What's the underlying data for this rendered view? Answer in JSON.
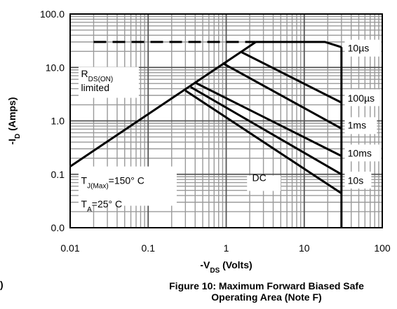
{
  "chart_data": {
    "type": "line",
    "title": "",
    "xlabel_main": "-V",
    "xlabel_sub": "DS",
    "xlabel_tail": " (Volts)",
    "ylabel_main": "-I",
    "ylabel_sub": "D",
    "ylabel_tail": " (Amps)",
    "x_scale": "log",
    "y_scale": "log",
    "xlim": [
      0.01,
      100
    ],
    "ylim": [
      0.01,
      100
    ],
    "x_ticks": [
      {
        "value": 0.01,
        "label": "0.01"
      },
      {
        "value": 0.1,
        "label": "0.1"
      },
      {
        "value": 1,
        "label": "1"
      },
      {
        "value": 10,
        "label": "10"
      },
      {
        "value": 100,
        "label": "100"
      }
    ],
    "y_ticks": [
      {
        "value": 100,
        "label": "100.0"
      },
      {
        "value": 10,
        "label": "10.0"
      },
      {
        "value": 1,
        "label": "1.0"
      },
      {
        "value": 0.1,
        "label": "0.1"
      },
      {
        "value": 0.01,
        "label": "0.0"
      }
    ],
    "grid": true,
    "series": [
      {
        "name": "10µs",
        "x": [
          2.4,
          18.5,
          30
        ],
        "y": [
          30,
          30,
          24
        ]
      },
      {
        "name": "100µs",
        "x": [
          1.55,
          30
        ],
        "y": [
          19.5,
          2.2
        ]
      },
      {
        "name": "1ms",
        "x": [
          0.9,
          30
        ],
        "y": [
          12,
          0.72
        ]
      },
      {
        "name": "10ms",
        "x": [
          0.4,
          30
        ],
        "y": [
          5.2,
          0.22
        ]
      },
      {
        "name": "10s",
        "x": [
          0.35,
          30
        ],
        "y": [
          4.3,
          0.1
        ]
      },
      {
        "name": "DC",
        "x": [
          0.3,
          30
        ],
        "y": [
          3.7,
          0.044
        ]
      }
    ],
    "rds_limit": {
      "x": [
        0.01,
        2.4
      ],
      "y": [
        0.14,
        30
      ]
    },
    "package_limit": {
      "x": [
        0.02,
        2.4
      ],
      "y": [
        30,
        30
      ]
    },
    "vds_limit": {
      "x": [
        30,
        30
      ],
      "y": [
        0.01,
        24
      ]
    },
    "annotations": {
      "rds_main": "R",
      "rds_sub": "DS(ON)",
      "rds_line2": "limited",
      "tj_main": "T",
      "tj_sub": "J(Max)",
      "tj_tail": "=150° C",
      "ta_main": "T",
      "ta_sub": "A",
      "ta_tail": "=25° C"
    },
    "caption_line1": "Figure 10: Maximum Forward Biased Safe",
    "caption_line2": "Operating Area (Note F)",
    "stray_text": ")"
  }
}
